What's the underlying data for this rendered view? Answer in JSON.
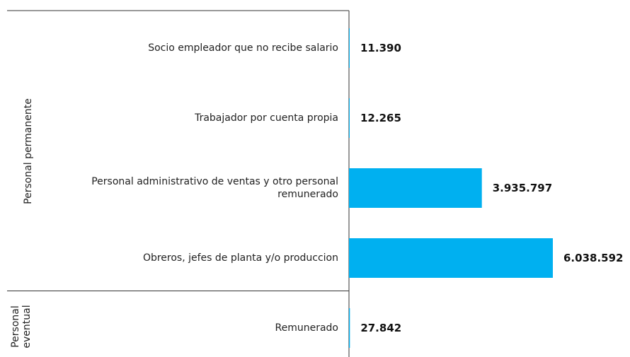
{
  "chart_data": {
    "type": "bar",
    "orientation": "horizontal",
    "color": "#00b0f0",
    "categories": [
      "Socio empleador que no recibe salario",
      "Trabajador por cuenta propia",
      "Personal administrativo de ventas y otro personal remunerado",
      "Obreros, jefes de planta y/o produccion",
      "Remunerado"
    ],
    "groups": [
      "Personal permanente",
      "Personal permanente",
      "Personal permanente",
      "Personal permanente",
      "Personal eventual"
    ],
    "values": [
      11390,
      12265,
      3935797,
      6038592,
      27842
    ],
    "value_labels": [
      "11.390",
      "12.265",
      "3.935.797",
      "6.038.592",
      "27.842"
    ]
  }
}
